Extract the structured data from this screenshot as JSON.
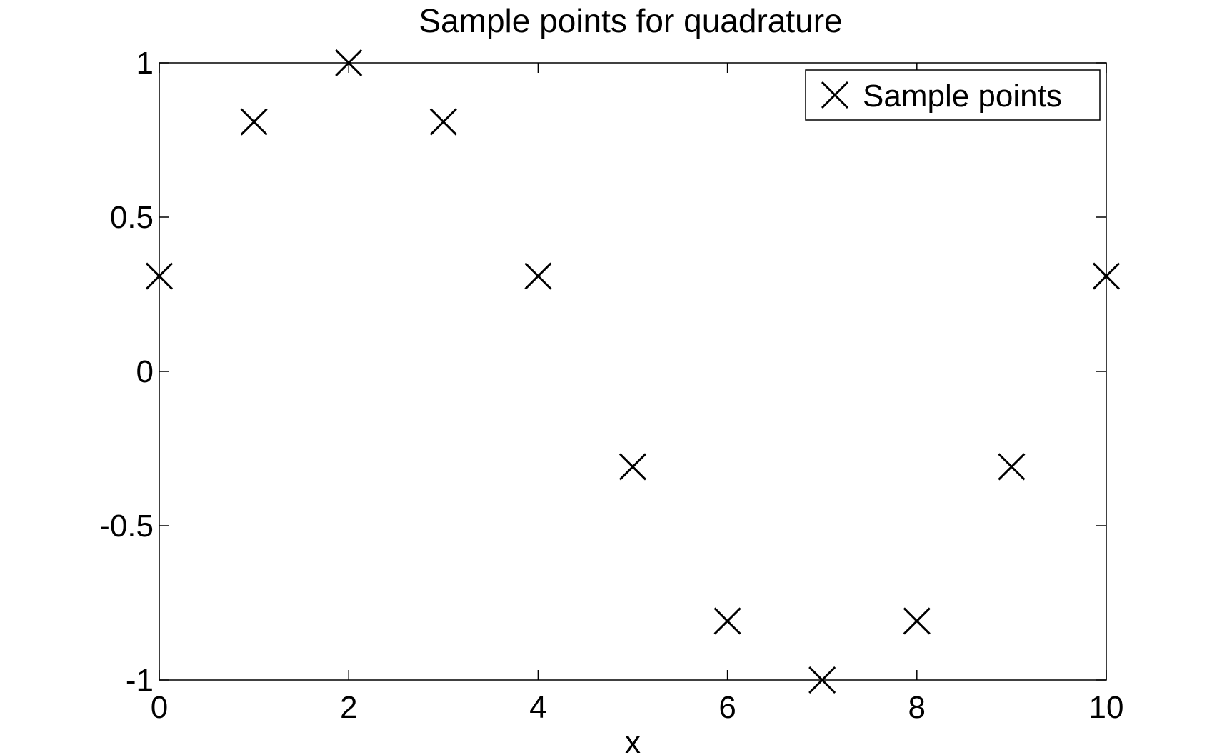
{
  "chart_data": {
    "type": "scatter",
    "title": "Sample points for quadrature",
    "xlabel": "x",
    "ylabel": "",
    "xlim": [
      0,
      10
    ],
    "ylim": [
      -1,
      1
    ],
    "xticks": [
      0,
      2,
      4,
      6,
      8,
      10
    ],
    "xtick_labels": [
      "0",
      "2",
      "4",
      "6",
      "8",
      "10"
    ],
    "yticks": [
      -1,
      -0.5,
      0,
      0.5,
      1
    ],
    "ytick_labels": [
      "-1",
      "-0.5",
      "0",
      "0.5",
      "1"
    ],
    "grid": false,
    "legend": {
      "placement": "top-right",
      "entries": [
        "Sample points"
      ]
    },
    "series": [
      {
        "name": "Sample points",
        "marker": "x",
        "color": "#000000",
        "x": [
          0,
          1,
          2,
          3,
          4,
          5,
          6,
          7,
          8,
          9,
          10
        ],
        "y": [
          0.309,
          0.809,
          1.0,
          0.809,
          0.309,
          -0.309,
          -0.809,
          -1.0,
          -0.809,
          -0.309,
          0.309
        ]
      }
    ]
  }
}
